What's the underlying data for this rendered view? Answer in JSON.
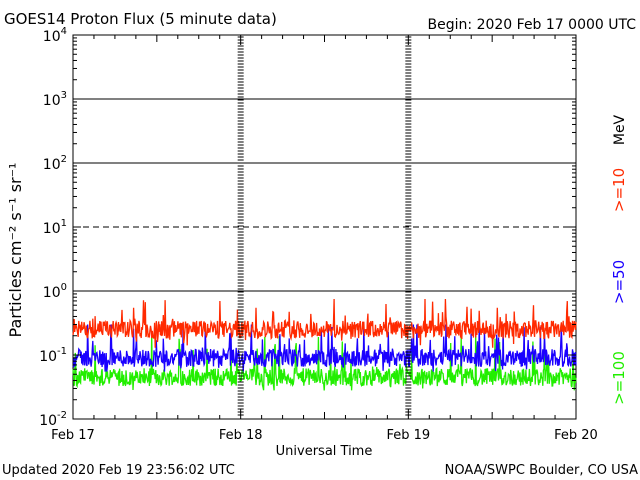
{
  "header": {
    "title": "GOES14 Proton Flux (5 minute data)",
    "begin": "Begin: 2020 Feb 17 0000 UTC"
  },
  "footer": {
    "updated": "Updated 2020 Feb 19 23:56:02 UTC",
    "credit": "NOAA/SWPC Boulder, CO USA"
  },
  "colors": {
    "ge10": "#ff2a00",
    "ge50": "#1a00ff",
    "ge100": "#22ee00",
    "axis": "#000000",
    "background": "#ffffff"
  },
  "chart_data": {
    "type": "line",
    "title": "GOES14 Proton Flux (5 minute data)",
    "subtitle": "Begin: 2020 Feb 17 0000 UTC",
    "xlabel": "Universal Time",
    "ylabel": "Particles cm⁻² s⁻¹ sr⁻¹",
    "unit_label": "MeV",
    "y_scale": "log",
    "ylim": [
      0.01,
      10000
    ],
    "xlim": [
      "2020-02-17",
      "2020-02-20"
    ],
    "x_ticks": [
      "Feb 17",
      "Feb 18",
      "Feb 19",
      "Feb 20"
    ],
    "y_ticks": [
      {
        "base": "10",
        "exp": "-2"
      },
      {
        "base": "10",
        "exp": "-1"
      },
      {
        "base": "10",
        "exp": "0"
      },
      {
        "base": "10",
        "exp": "1"
      },
      {
        "base": "10",
        "exp": "2"
      },
      {
        "base": "10",
        "exp": "3"
      },
      {
        "base": "10",
        "exp": "4"
      }
    ],
    "threshold_line": {
      "y": 10,
      "style": "dashed"
    },
    "series": [
      {
        "name": ">=10",
        "color": "#ff2a00",
        "typical": 0.25,
        "range": [
          0.13,
          0.75
        ]
      },
      {
        "name": ">=50",
        "color": "#1a00ff",
        "typical": 0.09,
        "range": [
          0.055,
          0.3
        ]
      },
      {
        "name": ">=100",
        "color": "#22ee00",
        "typical": 0.045,
        "range": [
          0.028,
          0.2
        ]
      }
    ],
    "grid": true,
    "legend": "right, vertical"
  }
}
